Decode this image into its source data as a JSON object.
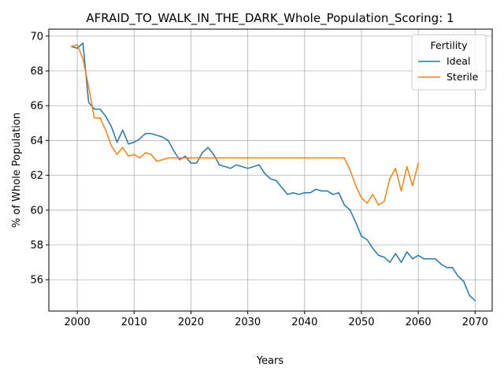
{
  "chart_data": {
    "type": "line",
    "title": "AFRAID_TO_WALK_IN_THE_DARK_Whole_Population_Scoring: 1",
    "xlabel": "Years",
    "ylabel": "% of Whole Population",
    "xlim": [
      1995,
      2073
    ],
    "ylim": [
      54.2,
      70.4
    ],
    "xticks": [
      2000,
      2010,
      2020,
      2030,
      2040,
      2050,
      2060,
      2070
    ],
    "yticks": [
      56,
      58,
      60,
      62,
      64,
      66,
      68,
      70
    ],
    "grid": true,
    "legend": {
      "title": "Fertility",
      "placement": "top-right"
    },
    "series": [
      {
        "name": "Ideal",
        "color": "#1f77b4",
        "x": [
          1999,
          2000,
          2001,
          2002,
          2003,
          2004,
          2005,
          2006,
          2007,
          2008,
          2009,
          2010,
          2011,
          2012,
          2013,
          2014,
          2015,
          2016,
          2017,
          2018,
          2019,
          2020,
          2021,
          2022,
          2023,
          2024,
          2025,
          2026,
          2027,
          2028,
          2029,
          2030,
          2031,
          2032,
          2033,
          2034,
          2035,
          2036,
          2037,
          2038,
          2039,
          2040,
          2041,
          2042,
          2043,
          2044,
          2045,
          2046,
          2047,
          2048,
          2049,
          2050,
          2051,
          2052,
          2053,
          2054,
          2055,
          2056,
          2057,
          2058,
          2059,
          2060,
          2061,
          2062,
          2063,
          2064,
          2065,
          2066,
          2067,
          2068,
          2069,
          2070
        ],
        "y": [
          69.4,
          69.3,
          69.6,
          66.2,
          65.8,
          65.8,
          65.4,
          64.8,
          63.9,
          64.6,
          63.8,
          63.9,
          64.1,
          64.4,
          64.4,
          64.3,
          64.2,
          64.0,
          63.4,
          62.9,
          63.1,
          62.7,
          62.7,
          63.3,
          63.6,
          63.2,
          62.6,
          62.5,
          62.4,
          62.6,
          62.5,
          62.4,
          62.5,
          62.6,
          62.1,
          61.8,
          61.7,
          61.3,
          60.9,
          61.0,
          60.9,
          61.0,
          61.0,
          61.2,
          61.1,
          61.1,
          60.9,
          61.0,
          60.3,
          60.0,
          59.3,
          58.5,
          58.3,
          57.8,
          57.4,
          57.3,
          57.0,
          57.5,
          57.0,
          57.6,
          57.2,
          57.4,
          57.2,
          57.2,
          57.2,
          56.9,
          56.7,
          56.7,
          56.2,
          55.9,
          55.1,
          54.8
        ]
      },
      {
        "name": "Sterile",
        "color": "#ff7f0e",
        "x": [
          1999,
          2000,
          2001,
          2002,
          2003,
          2004,
          2005,
          2006,
          2007,
          2008,
          2009,
          2010,
          2011,
          2012,
          2013,
          2014,
          2015,
          2016,
          2017,
          2018,
          2019,
          2020,
          2021,
          2022,
          2023,
          2024,
          2025,
          2026,
          2027,
          2028,
          2029,
          2030,
          2031,
          2032,
          2033,
          2034,
          2035,
          2036,
          2037,
          2038,
          2039,
          2040,
          2041,
          2042,
          2043,
          2044,
          2045,
          2046,
          2047,
          2048,
          2049,
          2050,
          2051,
          2052,
          2053,
          2054,
          2055,
          2056,
          2057,
          2058,
          2059,
          2060
        ],
        "y": [
          69.4,
          69.5,
          68.7,
          67.1,
          65.3,
          65.3,
          64.6,
          63.7,
          63.2,
          63.6,
          63.1,
          63.2,
          63.0,
          63.3,
          63.2,
          62.8,
          62.9,
          63.0,
          63.0,
          63.0,
          63.0,
          63.0,
          63.0,
          63.0,
          63.0,
          63.0,
          63.0,
          63.0,
          63.0,
          63.0,
          63.0,
          63.0,
          63.0,
          63.0,
          63.0,
          63.0,
          63.0,
          63.0,
          63.0,
          63.0,
          63.0,
          63.0,
          63.0,
          63.0,
          63.0,
          63.0,
          63.0,
          63.0,
          63.0,
          62.3,
          61.4,
          60.7,
          60.4,
          60.9,
          60.3,
          60.5,
          61.8,
          62.4,
          61.1,
          62.5,
          61.4,
          62.7
        ]
      }
    ]
  }
}
